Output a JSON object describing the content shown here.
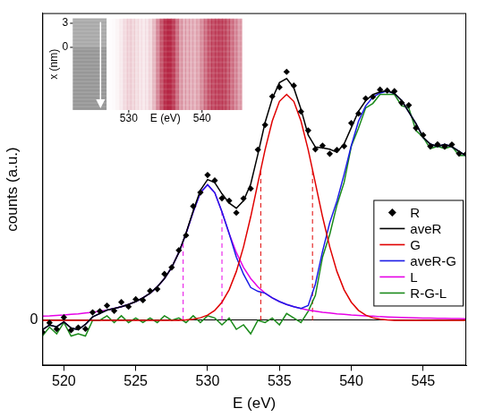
{
  "chart_data": {
    "type": "line",
    "xlabel": "E (eV)",
    "ylabel": "counts (a.u.)",
    "x": [
      518.5,
      519,
      519.5,
      520,
      520.5,
      521,
      521.5,
      522,
      522.5,
      523,
      523.5,
      524,
      524.5,
      525,
      525.5,
      526,
      526.5,
      527,
      527.5,
      528,
      528.5,
      529,
      529.5,
      530,
      530.5,
      531,
      531.5,
      532,
      532.5,
      533,
      533.5,
      534,
      534.5,
      535,
      535.5,
      536,
      536.5,
      537,
      537.5,
      538,
      538.5,
      539,
      539.5,
      540,
      540.5,
      541,
      541.5,
      542,
      542.5,
      543,
      543.5,
      544,
      544.5,
      545,
      545.5,
      546,
      546.5,
      547,
      547.5,
      548
    ],
    "series": [
      {
        "name": "R",
        "type": "scatter",
        "color": "#000000",
        "marker": "diamond",
        "line_style": "none",
        "values": [
          -0.052,
          -0.011,
          -0.039,
          0.013,
          -0.044,
          -0.032,
          -0.038,
          0.035,
          0.04,
          0.065,
          0.042,
          0.08,
          0.06,
          0.093,
          0.089,
          0.13,
          0.138,
          0.205,
          0.234,
          0.31,
          0.376,
          0.505,
          0.566,
          0.643,
          0.619,
          0.54,
          0.529,
          0.476,
          0.539,
          0.583,
          0.755,
          0.865,
          0.991,
          1.032,
          1.1,
          1.039,
          0.924,
          0.84,
          0.757,
          0.773,
          0.737,
          0.754,
          0.771,
          0.873,
          0.915,
          0.982,
          0.989,
          1.021,
          1.017,
          1.014,
          0.963,
          0.952,
          0.851,
          0.82,
          0.77,
          0.779,
          0.769,
          0.778,
          0.738,
          0.737
        ]
      },
      {
        "name": "aveR",
        "color": "#000000",
        "line_style": "solid",
        "values": [
          -0.042,
          -0.021,
          -0.029,
          -0.007,
          -0.034,
          -0.042,
          -0.018,
          0.015,
          0.03,
          0.045,
          0.052,
          0.06,
          0.07,
          0.083,
          0.099,
          0.12,
          0.148,
          0.185,
          0.234,
          0.3,
          0.386,
          0.485,
          0.576,
          0.623,
          0.609,
          0.56,
          0.519,
          0.496,
          0.529,
          0.603,
          0.735,
          0.875,
          0.981,
          1.052,
          1.07,
          1.029,
          0.934,
          0.82,
          0.767,
          0.763,
          0.757,
          0.744,
          0.781,
          0.853,
          0.925,
          0.972,
          0.999,
          1.011,
          1.017,
          1.004,
          0.973,
          0.922,
          0.871,
          0.81,
          0.78,
          0.769,
          0.779,
          0.768,
          0.748,
          0.727
        ]
      },
      {
        "name": "G",
        "color": "#e00000",
        "line_style": "solid",
        "values": [
          0,
          0,
          0,
          0,
          0,
          0,
          0,
          0,
          0,
          0,
          0,
          0,
          0,
          0,
          0,
          0,
          0,
          0,
          0,
          0,
          0.002,
          0.005,
          0.011,
          0.023,
          0.044,
          0.08,
          0.135,
          0.216,
          0.325,
          0.458,
          0.607,
          0.755,
          0.882,
          0.969,
          1.0,
          0.969,
          0.882,
          0.755,
          0.607,
          0.458,
          0.325,
          0.216,
          0.135,
          0.08,
          0.044,
          0.023,
          0.011,
          0.005,
          0.002,
          0,
          0,
          0,
          0,
          0,
          0,
          0,
          0,
          0,
          0,
          0
        ]
      },
      {
        "name": "aveR-G",
        "color": "#1a1ae6",
        "line_style": "solid",
        "values": [
          -0.042,
          -0.021,
          -0.029,
          -0.007,
          -0.034,
          -0.042,
          -0.018,
          0.015,
          0.03,
          0.045,
          0.052,
          0.06,
          0.07,
          0.083,
          0.099,
          0.12,
          0.148,
          0.185,
          0.234,
          0.3,
          0.384,
          0.48,
          0.565,
          0.6,
          0.565,
          0.48,
          0.384,
          0.28,
          0.204,
          0.145,
          0.128,
          0.12,
          0.099,
          0.083,
          0.07,
          0.06,
          0.052,
          0.065,
          0.16,
          0.305,
          0.432,
          0.528,
          0.646,
          0.773,
          0.881,
          0.949,
          0.988,
          1.006,
          1.015,
          1.004,
          0.973,
          0.922,
          0.871,
          0.81,
          0.78,
          0.769,
          0.779,
          0.768,
          0.748,
          0.727
        ]
      },
      {
        "name": "L",
        "color": "#e600e6",
        "line_style": "solid",
        "values": [
          0.018,
          0.019,
          0.021,
          0.023,
          0.026,
          0.028,
          0.032,
          0.035,
          0.04,
          0.045,
          0.052,
          0.06,
          0.07,
          0.083,
          0.099,
          0.12,
          0.148,
          0.185,
          0.234,
          0.3,
          0.384,
          0.48,
          0.565,
          0.6,
          0.565,
          0.48,
          0.384,
          0.3,
          0.234,
          0.185,
          0.148,
          0.12,
          0.099,
          0.083,
          0.07,
          0.06,
          0.052,
          0.045,
          0.04,
          0.035,
          0.032,
          0.028,
          0.026,
          0.023,
          0.021,
          0.019,
          0.018,
          0.016,
          0.015,
          0.014,
          0.013,
          0.012,
          0.011,
          0.01,
          0.01,
          0.009,
          0.009,
          0.008,
          0.008,
          0.007
        ]
      },
      {
        "name": "R-G-L",
        "color": "#1a8a1a",
        "line_style": "solid",
        "values": [
          -0.07,
          -0.03,
          -0.06,
          -0.01,
          -0.07,
          -0.06,
          -0.07,
          0.0,
          0.0,
          0.02,
          -0.01,
          0.02,
          -0.01,
          0.01,
          -0.01,
          0.01,
          -0.01,
          0.02,
          0.0,
          0.01,
          -0.01,
          0.02,
          -0.01,
          0.02,
          0.01,
          -0.02,
          0.01,
          -0.04,
          -0.02,
          -0.06,
          0.0,
          -0.01,
          0.01,
          -0.02,
          0.03,
          0.01,
          -0.01,
          0.04,
          0.11,
          0.28,
          0.38,
          0.51,
          0.61,
          0.77,
          0.85,
          0.94,
          0.96,
          1.0,
          1.0,
          1.0,
          0.95,
          0.94,
          0.84,
          0.81,
          0.76,
          0.77,
          0.76,
          0.77,
          0.73,
          0.73
        ]
      }
    ],
    "vlines": [
      {
        "x": 528.3,
        "y_from": 0,
        "y_to": 0.348,
        "color": "#e600e6",
        "line_style": "dashed"
      },
      {
        "x": 531.0,
        "y_from": 0,
        "y_to": 0.48,
        "color": "#e600e6",
        "line_style": "dashed"
      },
      {
        "x": 533.7,
        "y_from": 0,
        "y_to": 0.667,
        "color": "#e00000",
        "line_style": "dashed"
      },
      {
        "x": 537.3,
        "y_from": 0,
        "y_to": 0.667,
        "color": "#e00000",
        "line_style": "dashed"
      }
    ],
    "xlim": [
      518.5,
      548
    ],
    "xticks": [
      520,
      525,
      530,
      535,
      540,
      545
    ],
    "ylim": [
      -0.2,
      1.36
    ],
    "yticks": [
      0
    ],
    "grid": "y",
    "legend": "lower right",
    "inset": {
      "xlabel": "E (eV)",
      "ylabel": "x (nm)",
      "xlim": [
        527,
        545.5
      ],
      "xticks": [
        530,
        540
      ],
      "ylim": [
        3.6,
        -7.8
      ],
      "yticks": [
        3,
        0
      ]
    }
  }
}
